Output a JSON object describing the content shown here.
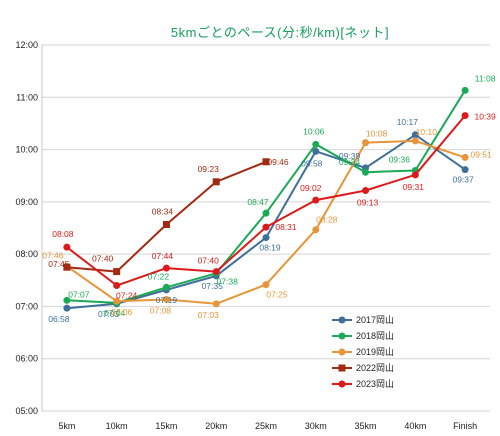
{
  "chart_data": {
    "type": "line",
    "title": "5kmごとのペース(分:秒/km)[ネット]",
    "xlabel": "",
    "ylabel": "",
    "categories": [
      "5km",
      "10km",
      "15km",
      "20km",
      "25km",
      "30km",
      "35km",
      "40km",
      "Finish"
    ],
    "y_unit": "minutes per km",
    "ylim": [
      5,
      12
    ],
    "y_ticks": [
      "05:00",
      "06:00",
      "07:00",
      "08:00",
      "09:00",
      "10:00",
      "11:00",
      "12:00"
    ],
    "grid": true,
    "legend_position": "bottom-right",
    "series": [
      {
        "name": "2017岡山",
        "color": "#3f6f9a",
        "marker": "circle",
        "values": [
          "06:58",
          "07:03",
          "07:19",
          "07:35",
          "08:19",
          "09:58",
          "09:39",
          "10:17",
          "09:37"
        ]
      },
      {
        "name": "2018岡山",
        "color": "#1aaa55",
        "marker": "circle",
        "values": [
          "07:07",
          "07:04",
          "07:22",
          "07:38",
          "08:47",
          "10:06",
          "09:34",
          "09:36",
          "11:08"
        ]
      },
      {
        "name": "2019岡山",
        "color": "#e8953a",
        "marker": "circle",
        "values": [
          "07:46",
          "07:06",
          "07:08",
          "07:03",
          "07:25",
          "08:28",
          "10:08",
          "10:10",
          "09:51"
        ]
      },
      {
        "name": "2022岡山",
        "color": "#a32a12",
        "marker": "square",
        "values": [
          "07:45",
          "07:40",
          "08:34",
          "09:23",
          "09:46",
          null,
          null,
          null,
          null
        ]
      },
      {
        "name": "2023岡山",
        "color": "#dd1a1a",
        "marker": "circle",
        "values": [
          "08:08",
          "07:24",
          "07:44",
          "07:40",
          "08:31",
          "09:02",
          "09:13",
          "09:31",
          "10:39"
        ]
      }
    ]
  }
}
